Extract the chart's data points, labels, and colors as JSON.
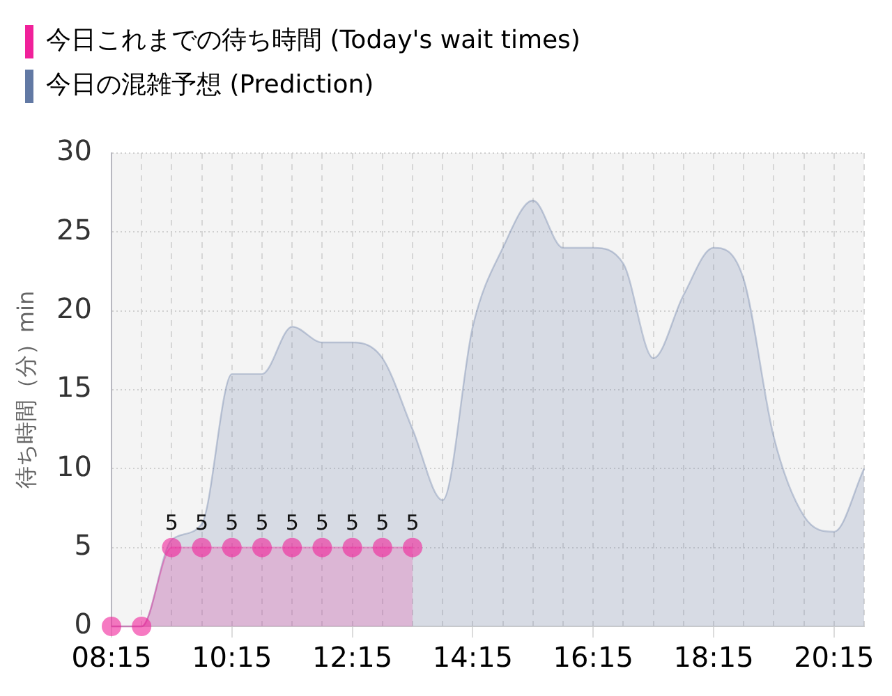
{
  "chart_data": {
    "type": "area",
    "ylabel": "待ち時間（分）min",
    "x": [
      8.25,
      8.75,
      9.25,
      9.75,
      10.25,
      10.75,
      11.25,
      11.75,
      12.25,
      12.75,
      13.25,
      13.75,
      14.25,
      14.75,
      15.25,
      15.75,
      16.25,
      16.75,
      17.25,
      17.75,
      18.25,
      18.75,
      19.25,
      19.75,
      20.25,
      20.75
    ],
    "series": [
      {
        "name": "今日これまでの待ち時間 (Today's wait times)",
        "color": "#f0219a",
        "marker": "circle",
        "values": [
          0,
          0,
          5,
          5,
          5,
          5,
          5,
          5,
          5,
          5,
          5,
          null,
          null,
          null,
          null,
          null,
          null,
          null,
          null,
          null,
          null,
          null,
          null,
          null,
          null,
          null
        ],
        "value_labels": [
          null,
          null,
          "5",
          "5",
          "5",
          "5",
          "5",
          "5",
          "5",
          "5",
          "5",
          null,
          null,
          null,
          null,
          null,
          null,
          null,
          null,
          null,
          null,
          null,
          null,
          null,
          null,
          null
        ]
      },
      {
        "name": "今日の混雑予想 (Prediction)",
        "color": "#6279a4",
        "marker": "none",
        "values": [
          0,
          0,
          5.5,
          6.5,
          16,
          16,
          19,
          18,
          18,
          17,
          12.5,
          8,
          19,
          24,
          27,
          24,
          24,
          23,
          17,
          21,
          24,
          22,
          12,
          7,
          6,
          10
        ]
      }
    ],
    "xlim": [
      8.25,
      20.75
    ],
    "xticks": [
      {
        "value": 8.25,
        "label": "08:15"
      },
      {
        "value": 8.75,
        "label": null
      },
      {
        "value": 9.25,
        "label": null
      },
      {
        "value": 9.75,
        "label": null
      },
      {
        "value": 10.25,
        "label": "10:15"
      },
      {
        "value": 10.75,
        "label": null
      },
      {
        "value": 11.25,
        "label": null
      },
      {
        "value": 11.75,
        "label": null
      },
      {
        "value": 12.25,
        "label": "12:15"
      },
      {
        "value": 12.75,
        "label": null
      },
      {
        "value": 13.25,
        "label": null
      },
      {
        "value": 13.75,
        "label": null
      },
      {
        "value": 14.25,
        "label": "14:15"
      },
      {
        "value": 14.75,
        "label": null
      },
      {
        "value": 15.25,
        "label": null
      },
      {
        "value": 15.75,
        "label": null
      },
      {
        "value": 16.25,
        "label": "16:15"
      },
      {
        "value": 16.75,
        "label": null
      },
      {
        "value": 17.25,
        "label": null
      },
      {
        "value": 17.75,
        "label": null
      },
      {
        "value": 18.25,
        "label": "18:15"
      },
      {
        "value": 18.75,
        "label": null
      },
      {
        "value": 19.25,
        "label": null
      },
      {
        "value": 19.75,
        "label": null
      },
      {
        "value": 20.25,
        "label": "20:15"
      },
      {
        "value": 20.75,
        "label": null
      }
    ],
    "ylim": [
      0,
      30
    ],
    "yticks": [
      0,
      5,
      10,
      15,
      20,
      25,
      30
    ],
    "grid": true,
    "legend": "top left"
  }
}
